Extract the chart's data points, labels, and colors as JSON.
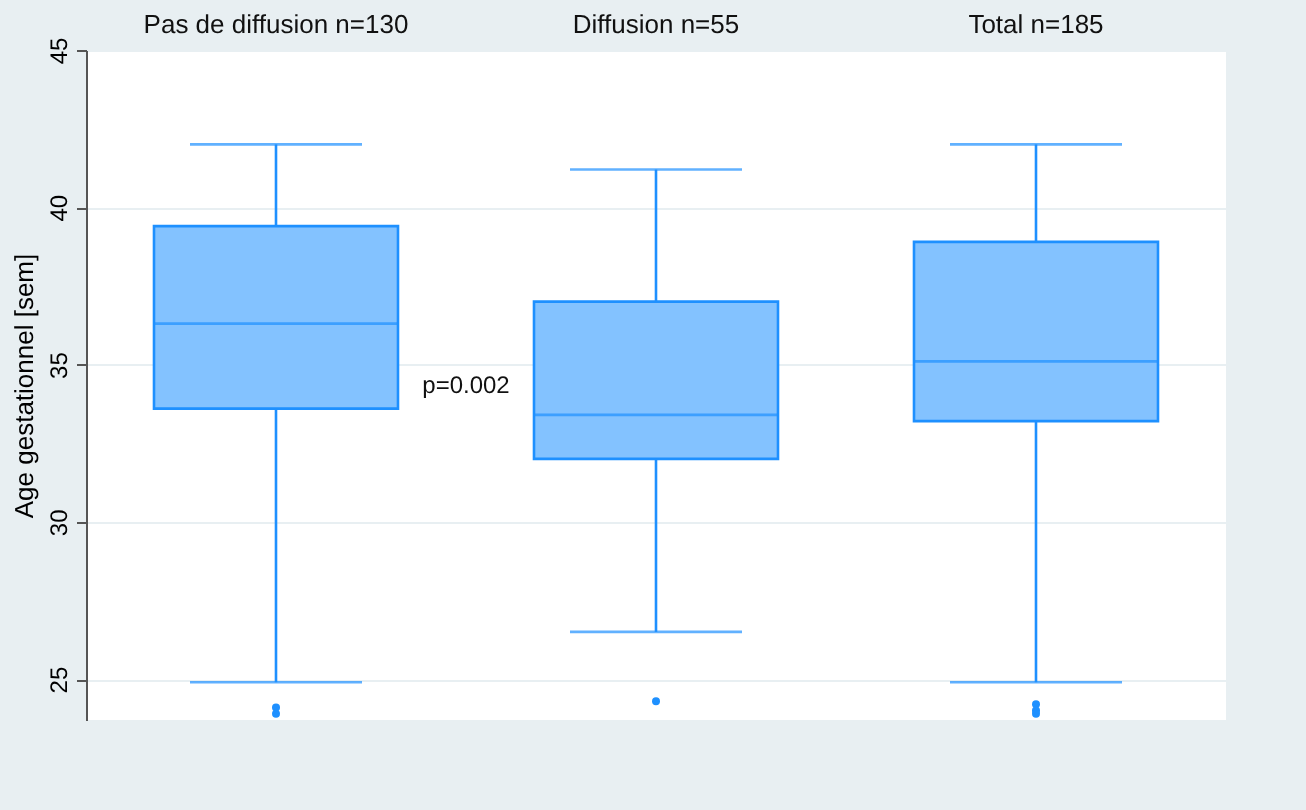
{
  "chart_data": {
    "type": "box",
    "ylabel": "Age gestationnel [sem]",
    "categories": [
      "Pas de diffusion n=130",
      "Diffusion n=55",
      "Total n=185"
    ],
    "ylim": [
      23.7,
      45
    ],
    "yticks": [
      25,
      30,
      35,
      40,
      45
    ],
    "grid": "y",
    "annotations": [
      "p=0.002"
    ],
    "series": [
      {
        "color": "#1e90ff",
        "boxes": [
          {
            "low": 24.9,
            "q1": 33.6,
            "median": 36.3,
            "q3": 39.4,
            "high": 42,
            "outliers": [
              24.1,
              23.9
            ]
          },
          {
            "low": 26.5,
            "q1": 32.0,
            "median": 33.4,
            "q3": 37.0,
            "high": 41.2,
            "outliers": [
              24.3
            ]
          },
          {
            "low": 24.9,
            "q1": 33.2,
            "median": 35.1,
            "q3": 38.9,
            "high": 42,
            "outliers": [
              24.2,
              24.0,
              23.9
            ]
          }
        ]
      }
    ]
  }
}
